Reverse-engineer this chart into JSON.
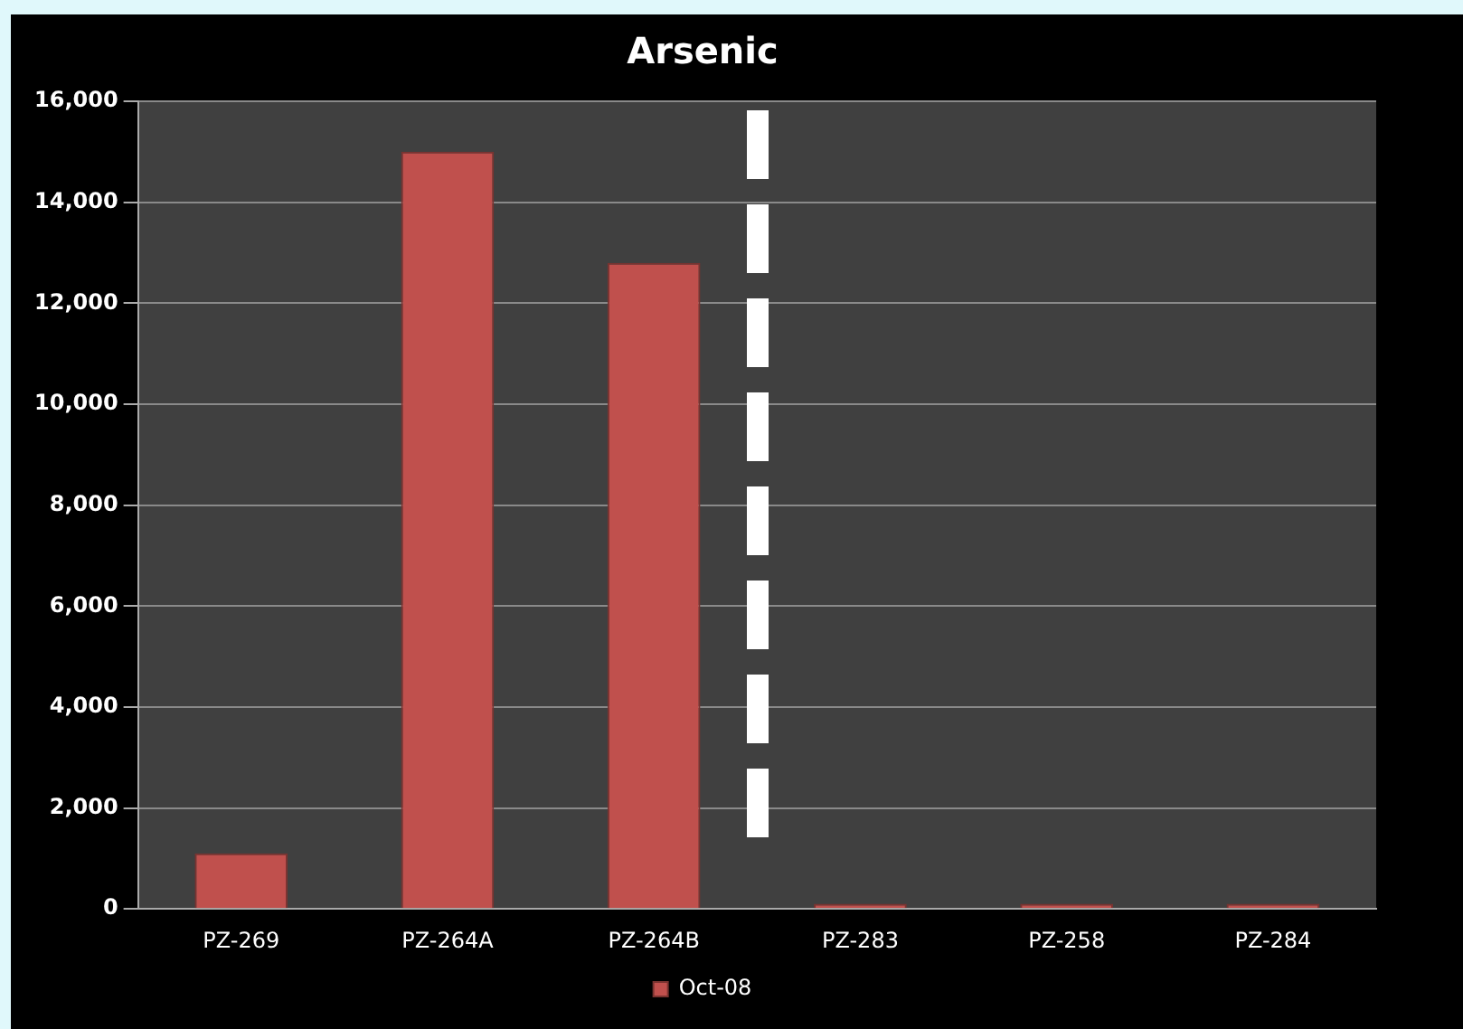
{
  "chart_data": {
    "type": "bar",
    "title": "Arsenic",
    "categories": [
      "PZ-269",
      "PZ-264A",
      "PZ-264B",
      "PZ-283",
      "PZ-258",
      "PZ-284"
    ],
    "series": [
      {
        "name": "Oct-08",
        "color": "#c0504d",
        "values": [
          1100,
          15000,
          12800,
          100,
          100,
          100
        ]
      }
    ],
    "ylim": [
      0,
      16000
    ],
    "yticks": [
      {
        "value": 0,
        "label": "0"
      },
      {
        "value": 2000,
        "label": "2,000"
      },
      {
        "value": 4000,
        "label": "4,000"
      },
      {
        "value": 6000,
        "label": "6,000"
      },
      {
        "value": 8000,
        "label": "8,000"
      },
      {
        "value": 10000,
        "label": "10,000"
      },
      {
        "value": 12000,
        "label": "12,000"
      },
      {
        "value": 14000,
        "label": "14,000"
      },
      {
        "value": 16000,
        "label": "16,000"
      }
    ],
    "grid": "y",
    "legend": "bottom"
  }
}
